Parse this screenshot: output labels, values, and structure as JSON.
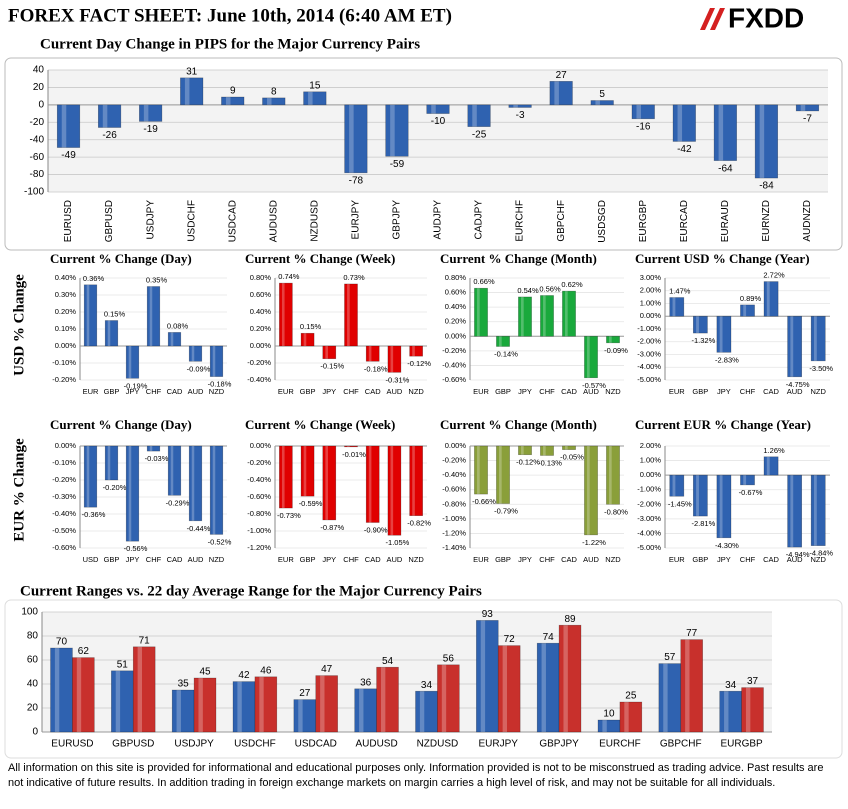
{
  "header": {
    "title": "FOREX FACT SHEET: June 10th, 2014 (6:40 AM ET)",
    "logo": "FXDD"
  },
  "row_labels": [
    "USD  % Change",
    "EUR % Change"
  ],
  "footer": "All information on this site is provided for informational and educational purposes only. Information provided is not to be misconstrued as trading advice.  Past results are not indicative of future results.  In addition trading in foreign exchange markets on margin carries a high level of risk, and may not be suitable for all individuals.",
  "chart_data": [
    {
      "type": "bar",
      "title": "Current Day Change in PIPS for the Major Currency Pairs",
      "categories": [
        "EURUSD",
        "GBPUSD",
        "USDJPY",
        "USDCHF",
        "USDCAD",
        "AUDUSD",
        "NZDUSD",
        "EURJPY",
        "GBPJPY",
        "AUDJPY",
        "CADJPY",
        "EURCHF",
        "GBPCHF",
        "USDSGD",
        "EURGBP",
        "EURCAD",
        "EURAUD",
        "EURNZD",
        "AUDNZD"
      ],
      "values": [
        -49,
        -26,
        -19,
        31,
        9,
        8,
        15,
        -78,
        -59,
        -10,
        -25,
        -3,
        27,
        5,
        -16,
        -42,
        -64,
        -84,
        -7
      ],
      "color": "#2f62b0",
      "ylim": [
        -100,
        40
      ],
      "yticks": [
        -100,
        -80,
        -60,
        -40,
        -20,
        0,
        20,
        40
      ],
      "grid": true
    },
    {
      "type": "bar",
      "title": "Current % Change (Day)",
      "categories": [
        "EUR",
        "GBP",
        "JPY",
        "CHF",
        "CAD",
        "AUD",
        "NZD"
      ],
      "values": [
        0.36,
        0.15,
        -0.19,
        0.35,
        0.08,
        -0.09,
        -0.18
      ],
      "value_labels": [
        "0.36%",
        "0.15%",
        "-0.19%",
        "0.35%",
        "0.08%",
        "-0.09%",
        "-0.18%"
      ],
      "color": "#2f62b0",
      "ylim": [
        -0.2,
        0.4
      ],
      "yticks": [
        {
          "value": -0.2,
          "label": "-0.20%"
        },
        {
          "value": -0.1,
          "label": "-0.10%"
        },
        {
          "value": 0,
          "label": "0.00%"
        },
        {
          "value": 0.1,
          "label": "0.10%"
        },
        {
          "value": 0.2,
          "label": "0.20%"
        },
        {
          "value": 0.3,
          "label": "0.30%"
        },
        {
          "value": 0.4,
          "label": "0.40%"
        }
      ],
      "grid": true
    },
    {
      "type": "bar",
      "title": "Current % Change (Week)",
      "categories": [
        "EUR",
        "GBP",
        "JPY",
        "CHF",
        "CAD",
        "AUD",
        "NZD"
      ],
      "values": [
        0.74,
        0.15,
        -0.15,
        0.73,
        -0.18,
        -0.31,
        -0.12
      ],
      "value_labels": [
        "0.74%",
        "0.15%",
        "-0.15%",
        "0.73%",
        "-0.18%",
        "-0.31%",
        "-0.12%"
      ],
      "color": "#e00000",
      "ylim": [
        -0.4,
        0.8
      ],
      "yticks": [
        {
          "value": -0.4,
          "label": "-0.40%"
        },
        {
          "value": -0.2,
          "label": "-0.20%"
        },
        {
          "value": 0,
          "label": "0.00%"
        },
        {
          "value": 0.2,
          "label": "0.20%"
        },
        {
          "value": 0.4,
          "label": "0.40%"
        },
        {
          "value": 0.6,
          "label": "0.60%"
        },
        {
          "value": 0.8,
          "label": "0.80%"
        }
      ],
      "grid": true
    },
    {
      "type": "bar",
      "title": "Current % Change (Month)",
      "categories": [
        "EUR",
        "GBP",
        "JPY",
        "CHF",
        "CAD",
        "AUD",
        "NZD"
      ],
      "values": [
        0.66,
        -0.14,
        0.54,
        0.56,
        0.62,
        -0.57,
        -0.09
      ],
      "value_labels": [
        "0.66%",
        "-0.14%",
        "0.54%",
        "0.56%",
        "0.62%",
        "-0.57%",
        "-0.09%"
      ],
      "color": "#19a93c",
      "ylim": [
        -0.6,
        0.8
      ],
      "yticks": [
        {
          "value": -0.6,
          "label": "-0.60%"
        },
        {
          "value": -0.4,
          "label": "-0.40%"
        },
        {
          "value": -0.2,
          "label": "-0.20%"
        },
        {
          "value": 0,
          "label": "0.00%"
        },
        {
          "value": 0.2,
          "label": "0.20%"
        },
        {
          "value": 0.4,
          "label": "0.40%"
        },
        {
          "value": 0.6,
          "label": "0.60%"
        },
        {
          "value": 0.8,
          "label": "0.80%"
        }
      ],
      "grid": true
    },
    {
      "type": "bar",
      "title": "Current USD % Change (Year)",
      "categories": [
        "EUR",
        "GBP",
        "JPY",
        "CHF",
        "CAD",
        "AUD",
        "NZD"
      ],
      "values": [
        1.47,
        -1.32,
        -2.83,
        0.89,
        2.72,
        -4.75,
        -3.5
      ],
      "value_labels": [
        "1.47%",
        "-1.32%",
        "-2.83%",
        "0.89%",
        "2.72%",
        "-4.75%",
        "-3.50%"
      ],
      "color": "#2f62b0",
      "ylim": [
        -5,
        3
      ],
      "yticks": [
        {
          "value": -5,
          "label": "-5.00%"
        },
        {
          "value": -4,
          "label": "-4.00%"
        },
        {
          "value": -3,
          "label": "-3.00%"
        },
        {
          "value": -2,
          "label": "-2.00%"
        },
        {
          "value": -1,
          "label": "-1.00%"
        },
        {
          "value": 0,
          "label": "0.00%"
        },
        {
          "value": 1,
          "label": "1.00%"
        },
        {
          "value": 2,
          "label": "2.00%"
        },
        {
          "value": 3,
          "label": "3.00%"
        }
      ],
      "grid": true
    },
    {
      "type": "bar",
      "title": "Current % Change (Day)",
      "categories": [
        "USD",
        "GBP",
        "JPY",
        "CHF",
        "CAD",
        "AUD",
        "NZD"
      ],
      "values": [
        -0.36,
        -0.2,
        -0.56,
        -0.03,
        -0.29,
        -0.44,
        -0.52
      ],
      "value_labels": [
        "-0.36%",
        "-0.20%",
        "-0.56%",
        "-0.03%",
        "-0.29%",
        "-0.44%",
        "-0.52%"
      ],
      "color": "#2f62b0",
      "ylim": [
        -0.6,
        0
      ],
      "yticks": [
        {
          "value": -0.6,
          "label": "-0.60%"
        },
        {
          "value": -0.5,
          "label": "-0.50%"
        },
        {
          "value": -0.4,
          "label": "-0.40%"
        },
        {
          "value": -0.3,
          "label": "-0.30%"
        },
        {
          "value": -0.2,
          "label": "-0.20%"
        },
        {
          "value": -0.1,
          "label": "-0.10%"
        },
        {
          "value": 0,
          "label": "0.00%"
        }
      ],
      "grid": true
    },
    {
      "type": "bar",
      "title": "Current % Change (Week)",
      "categories": [
        "EUR",
        "GBP",
        "JPY",
        "CHF",
        "CAD",
        "AUD",
        "NZD"
      ],
      "values": [
        -0.73,
        -0.59,
        -0.87,
        -0.01,
        -0.9,
        -1.05,
        -0.82
      ],
      "value_labels": [
        "-0.73%",
        "-0.59%",
        "-0.87%",
        "-0.01%",
        "-0.90%",
        "-1.05%",
        "-0.82%"
      ],
      "color": "#e00000",
      "ylim": [
        -1.2,
        0
      ],
      "yticks": [
        {
          "value": -1.2,
          "label": "-1.20%"
        },
        {
          "value": -1,
          "label": "-1.00%"
        },
        {
          "value": -0.8,
          "label": "-0.80%"
        },
        {
          "value": -0.6,
          "label": "-0.60%"
        },
        {
          "value": -0.4,
          "label": "-0.40%"
        },
        {
          "value": -0.2,
          "label": "-0.20%"
        },
        {
          "value": 0,
          "label": "0.00%"
        }
      ],
      "grid": true
    },
    {
      "type": "bar",
      "title": "Current % Change (Month)",
      "categories": [
        "EUR",
        "GBP",
        "JPY",
        "CHF",
        "CAD",
        "AUD",
        "NZD"
      ],
      "values": [
        -0.66,
        -0.79,
        -0.12,
        -0.13,
        -0.05,
        -1.22,
        -0.8
      ],
      "value_labels": [
        "-0.66%",
        "-0.79%",
        "-0.12%",
        "-0.13%",
        "-0.05%",
        "-1.22%",
        "-0.80%"
      ],
      "color": "#8a9f3a",
      "ylim": [
        -1.4,
        0
      ],
      "yticks": [
        {
          "value": -1.4,
          "label": "-1.40%"
        },
        {
          "value": -1.2,
          "label": "-1.20%"
        },
        {
          "value": -1,
          "label": "-1.00%"
        },
        {
          "value": -0.8,
          "label": "-0.80%"
        },
        {
          "value": -0.6,
          "label": "-0.60%"
        },
        {
          "value": -0.4,
          "label": "-0.40%"
        },
        {
          "value": -0.2,
          "label": "-0.20%"
        },
        {
          "value": 0,
          "label": "0.00%"
        }
      ],
      "grid": true
    },
    {
      "type": "bar",
      "title": "Current EUR % Change (Year)",
      "categories": [
        "EUR",
        "GBP",
        "JPY",
        "CHF",
        "CAD",
        "AUD",
        "NZD"
      ],
      "values": [
        -1.45,
        -2.81,
        -4.3,
        -0.67,
        1.26,
        -4.94,
        -4.84
      ],
      "value_labels": [
        "-1.45%",
        "-2.81%",
        "-4.30%",
        "-0.67%",
        "1.26%",
        "-4.94%",
        "-4.84%"
      ],
      "color": "#2f62b0",
      "ylim": [
        -5,
        2
      ],
      "yticks": [
        {
          "value": -5,
          "label": "-5.00%"
        },
        {
          "value": -4,
          "label": "-4.00%"
        },
        {
          "value": -3,
          "label": "-3.00%"
        },
        {
          "value": -2,
          "label": "-2.00%"
        },
        {
          "value": -1,
          "label": "-1.00%"
        },
        {
          "value": 0,
          "label": "0.00%"
        },
        {
          "value": 1,
          "label": "1.00%"
        },
        {
          "value": 2,
          "label": "2.00%"
        }
      ],
      "grid": true
    },
    {
      "type": "grouped_bar",
      "title": "Current Ranges vs. 22 day Average Range for the Major Currency Pairs",
      "categories": [
        "EURUSD",
        "GBPUSD",
        "USDJPY",
        "USDCHF",
        "USDCAD",
        "AUDUSD",
        "NZDUSD",
        "EURJPY",
        "GBPJPY",
        "EURCHF",
        "GBPCHF",
        "EURGBP"
      ],
      "series": [
        {
          "color": "#2f62b0",
          "values": [
            70,
            51,
            35,
            42,
            27,
            36,
            34,
            93,
            74,
            10,
            57,
            34
          ]
        },
        {
          "color": "#c8302c",
          "values": [
            62,
            71,
            45,
            46,
            47,
            54,
            56,
            72,
            89,
            25,
            77,
            37
          ]
        }
      ],
      "ylim": [
        0,
        100
      ],
      "yticks": [
        0,
        20,
        40,
        60,
        80,
        100
      ],
      "grid": true
    }
  ]
}
